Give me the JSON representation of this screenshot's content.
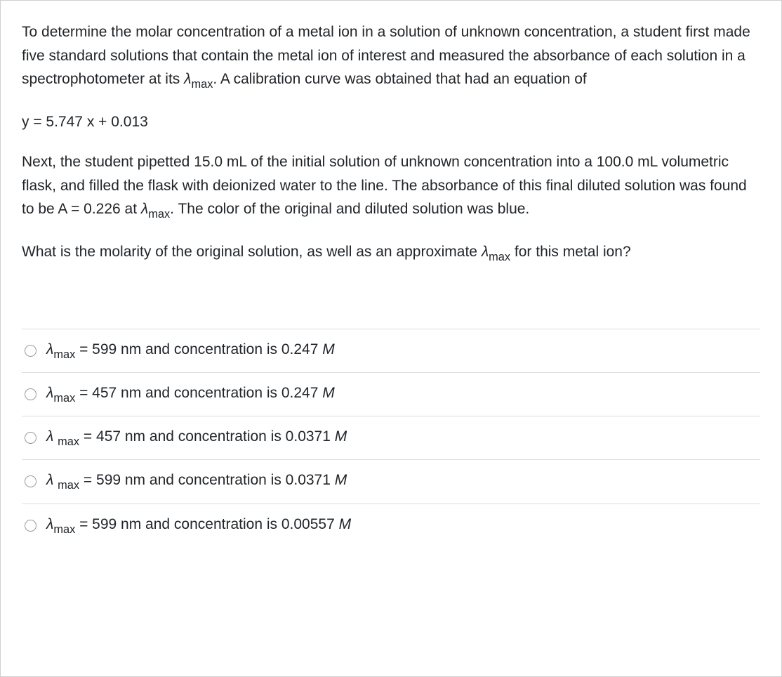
{
  "paragraphs": {
    "p1_pre": "To determine the molar concentration of a metal ion in a solution of unknown concentration, a student first made five standard solutions that contain the metal ion of interest and measured the absorbance of each solution in a spectrophotometer at its ",
    "p1_lambda": "λ",
    "p1_sub": "max",
    "p1_post": ".  A calibration curve was obtained that had an equation of",
    "equation": "y = 5.747 x + 0.013",
    "p2_pre": "Next, the student pipetted 15.0 mL of the initial solution of unknown concentration into a 100.0 mL volumetric flask, and filled the flask with deionized water to the line.  The absorbance of this final diluted solution was found to be A = 0.226 at ",
    "p2_lambda": "λ",
    "p2_sub": "max",
    "p2_post": ". The color of the original and diluted solution was blue.",
    "p3_pre": "What is the molarity of the original solution, as well as an approximate ",
    "p3_lambda": "λ",
    "p3_sub": "max",
    "p3_post": " for this metal ion?"
  },
  "options": [
    {
      "lambda": "λ",
      "sub": "max",
      "mid": " = 599 nm and concentration is 0.247 ",
      "unit": "M"
    },
    {
      "lambda": "λ",
      "sub": "max",
      "mid": " = 457 nm and concentration is 0.247 ",
      "unit": "M"
    },
    {
      "lambda": "λ ",
      "sub": "max",
      "mid": " = 457 nm and concentration is 0.0371 ",
      "unit": "M"
    },
    {
      "lambda": "λ ",
      "sub": "max",
      "mid": " = 599 nm and concentration is 0.0371 ",
      "unit": "M"
    },
    {
      "lambda": "λ",
      "sub": "max",
      "mid": " = 599 nm and concentration is 0.00557 ",
      "unit": "M"
    }
  ]
}
